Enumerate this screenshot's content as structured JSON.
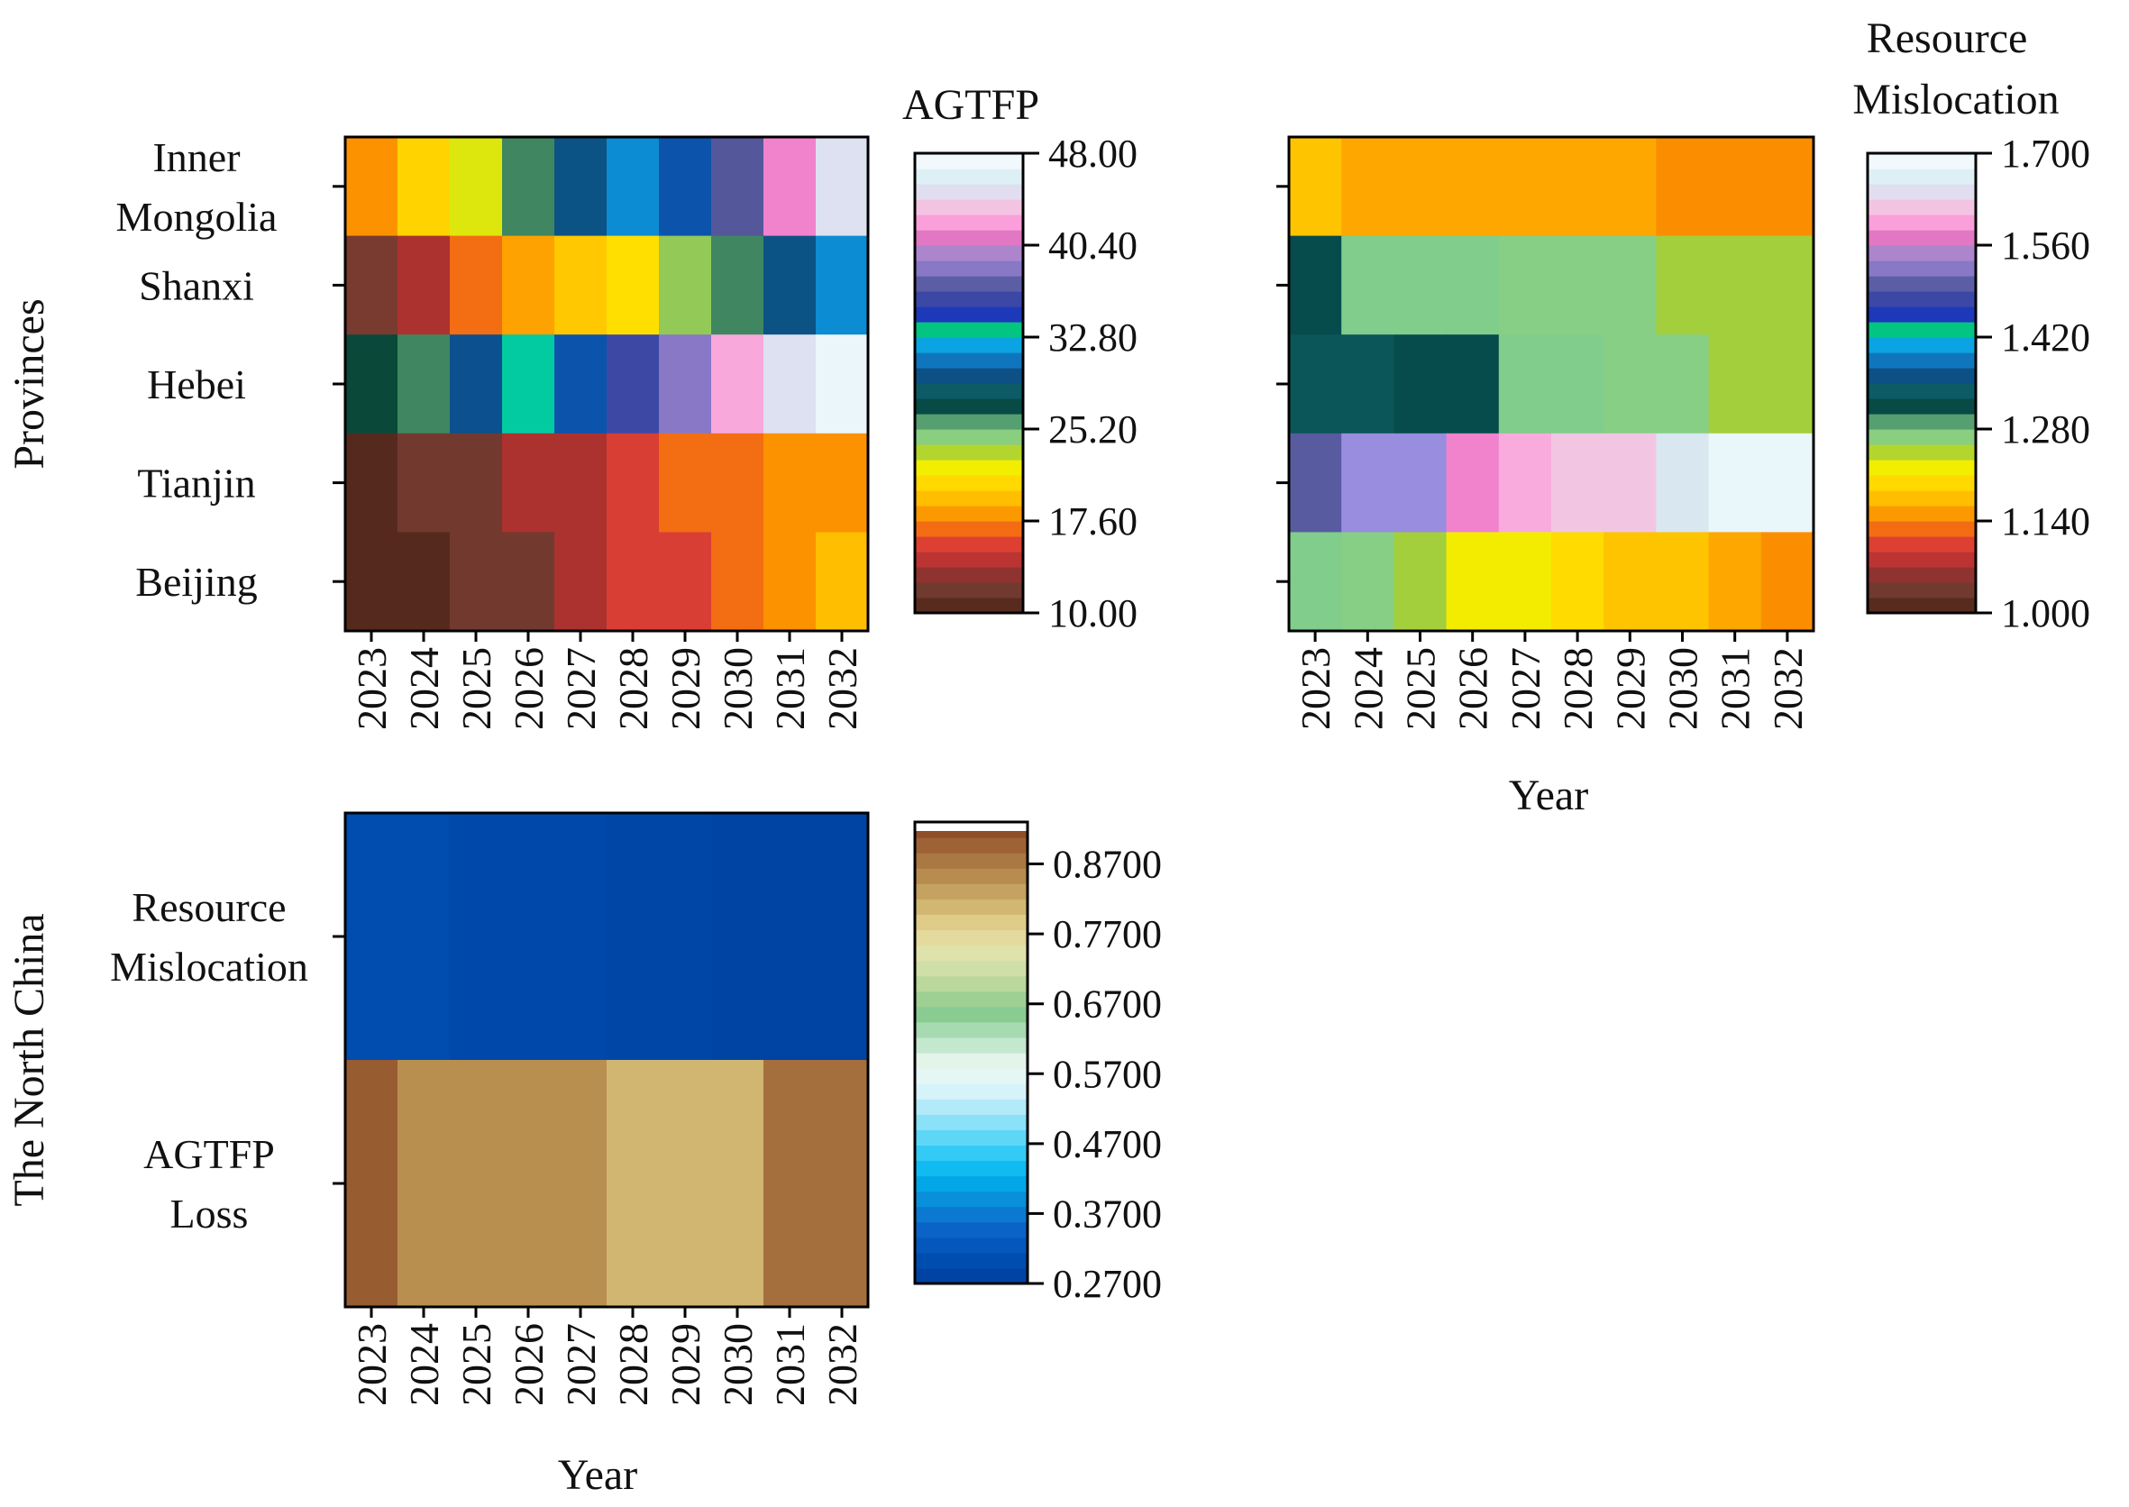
{
  "chart_data": [
    {
      "type": "heatmap",
      "id": "agtfp",
      "title": "",
      "ylabel": "Provinces",
      "xlabel": "",
      "x": [
        "2023",
        "2024",
        "2025",
        "2026",
        "2027",
        "2028",
        "2029",
        "2030",
        "2031",
        "2032"
      ],
      "y": [
        "Inner Mongolia",
        "Shanxi",
        "Hebei",
        "Tianjin",
        "Beijing"
      ],
      "y_display": [
        [
          "Inner",
          "Mongolia"
        ],
        [
          "Shanxi"
        ],
        [
          "Hebei"
        ],
        [
          "Tianjin"
        ],
        [
          "Beijing"
        ]
      ],
      "values": [
        [
          18.0,
          20.5,
          22.5,
          26.0,
          29.5,
          31.5,
          34.0,
          37.0,
          41.5,
          45.0
        ],
        [
          12.5,
          14.0,
          17.0,
          18.5,
          20.0,
          21.0,
          24.0,
          26.0,
          29.5,
          31.5
        ],
        [
          26.5,
          26.0,
          30.0,
          33.0,
          34.0,
          36.0,
          38.5,
          42.5,
          45.0,
          47.0
        ],
        [
          10.5,
          12.0,
          12.0,
          14.0,
          14.0,
          15.5,
          17.0,
          17.0,
          18.0,
          18.0
        ],
        [
          10.5,
          10.5,
          12.0,
          12.0,
          14.0,
          15.5,
          15.5,
          17.0,
          18.0,
          19.5
        ]
      ],
      "colorbar": {
        "title": "AGTFP",
        "range": [
          10.0,
          48.0
        ],
        "ticks": [
          "10.00",
          "17.60",
          "25.20",
          "32.80",
          "40.40",
          "48.00"
        ]
      }
    },
    {
      "type": "heatmap",
      "id": "resource_mislocation",
      "title": "",
      "ylabel": "",
      "xlabel": "Year",
      "x": [
        "2023",
        "2024",
        "2025",
        "2026",
        "2027",
        "2028",
        "2029",
        "2030",
        "2031",
        "2032"
      ],
      "y": [
        "Inner Mongolia",
        "Shanxi",
        "Hebei",
        "Tianjin",
        "Beijing"
      ],
      "values": [
        [
          1.18,
          1.16,
          1.16,
          1.16,
          1.16,
          1.16,
          1.16,
          1.145,
          1.145,
          1.145
        ],
        [
          1.32,
          1.28,
          1.28,
          1.28,
          1.27,
          1.27,
          1.27,
          1.25,
          1.25,
          1.25
        ],
        [
          1.33,
          1.33,
          1.32,
          1.32,
          1.28,
          1.28,
          1.27,
          1.27,
          1.25,
          1.25
        ],
        [
          1.5,
          1.54,
          1.54,
          1.58,
          1.6,
          1.62,
          1.62,
          1.65,
          1.68,
          1.68
        ],
        [
          1.28,
          1.27,
          1.25,
          1.22,
          1.22,
          1.2,
          1.18,
          1.18,
          1.16,
          1.145
        ]
      ],
      "colorbar": {
        "title": [
          "Resource",
          "Mislocation"
        ],
        "range": [
          1.0,
          1.7
        ],
        "ticks": [
          "1.000",
          "1.140",
          "1.280",
          "1.420",
          "1.560",
          "1.700"
        ]
      }
    },
    {
      "type": "heatmap",
      "id": "north_china",
      "title": "",
      "ylabel": "The North China",
      "xlabel": "Year",
      "x": [
        "2023",
        "2024",
        "2025",
        "2026",
        "2027",
        "2028",
        "2029",
        "2030",
        "2031",
        "2032"
      ],
      "y": [
        "Resource Mislocation",
        "AGTFP Loss"
      ],
      "y_display": [
        [
          "Resource",
          "Mislocation"
        ],
        [
          "AGTFP",
          "Loss"
        ]
      ],
      "values": [
        [
          0.3,
          0.3,
          0.293,
          0.293,
          0.293,
          0.288,
          0.288,
          0.282,
          0.282,
          0.282
        ],
        [
          0.905,
          0.85,
          0.85,
          0.85,
          0.85,
          0.81,
          0.81,
          0.81,
          0.885,
          0.885
        ]
      ],
      "colorbar": {
        "title": "",
        "range": [
          0.27,
          0.93
        ],
        "ticks": [
          "0.2700",
          "0.3700",
          "0.4700",
          "0.5700",
          "0.6700",
          "0.7700",
          "0.8700"
        ]
      }
    }
  ],
  "colors": {
    "cmap_rainbow": [
      "#4a2218",
      "#5e2e22",
      "#6e3a2e",
      "#7a3a30",
      "#98302e",
      "#b8332f",
      "#d33b3b",
      "#e4432c",
      "#f26a14",
      "#fb8b00",
      "#fda600",
      "#ffbe00",
      "#ffd000",
      "#ffe400",
      "#f2ee00",
      "#c7df1c",
      "#95c84a",
      "#88cf88",
      "#7acb8e",
      "#0a4838",
      "#064a4a",
      "#0b5a5e",
      "#0d5f80",
      "#0b4a88",
      "#1070b8",
      "#0b8fd6",
      "#09aee8",
      "#00dc78",
      "#0f2fba",
      "#2640b8",
      "#3b47a8",
      "#4d5090",
      "#6a6ab8",
      "#8878c6",
      "#9a8ee0",
      "#c07ab8",
      "#e478c4",
      "#ff90d6",
      "#f6b6e0",
      "#f2c6e2",
      "#e6d8f2",
      "#d6eaf0",
      "#dff2f6",
      "#edf7fb",
      "#ffffff"
    ],
    "cmap_diverging": [
      "#003e9c",
      "#0050b4",
      "#0a64c8",
      "#0b8ad8",
      "#00b4f0",
      "#3fd0f6",
      "#8fe2f8",
      "#d4f2fa",
      "#eef9f3",
      "#b9e3c4",
      "#86c98e",
      "#b8d79a",
      "#dfe4b0",
      "#e6d796",
      "#cfb36e",
      "#b88d4e",
      "#a0693a",
      "#8a4422",
      "#ffffff"
    ]
  }
}
